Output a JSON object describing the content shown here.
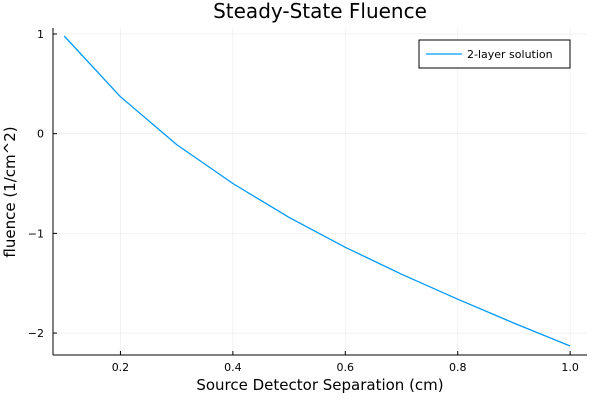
{
  "chart_data": {
    "type": "line",
    "title": "Steady-State Fluence",
    "xlabel": "Source Detector Separation (cm)",
    "ylabel": "fluence (1/cm^2)",
    "xlim": [
      0.08,
      1.03
    ],
    "ylim": [
      -2.22,
      1.06
    ],
    "xticks": [
      0.2,
      0.4,
      0.6,
      0.8,
      1.0
    ],
    "xtick_labels": [
      "0.2",
      "0.4",
      "0.6",
      "0.8",
      "1.0"
    ],
    "yticks": [
      -2,
      -1,
      0,
      1
    ],
    "ytick_labels": [
      "−2",
      "−1",
      "0",
      "1"
    ],
    "grid": true,
    "legend_position": "top-right",
    "series": [
      {
        "name": "2-layer solution",
        "color": "#009af9",
        "x": [
          0.1,
          0.2,
          0.3,
          0.4,
          0.5,
          0.6,
          0.7,
          0.8,
          0.9,
          1.0
        ],
        "y": [
          0.98,
          0.37,
          -0.11,
          -0.5,
          -0.84,
          -1.14,
          -1.41,
          -1.66,
          -1.9,
          -2.13
        ]
      }
    ]
  }
}
